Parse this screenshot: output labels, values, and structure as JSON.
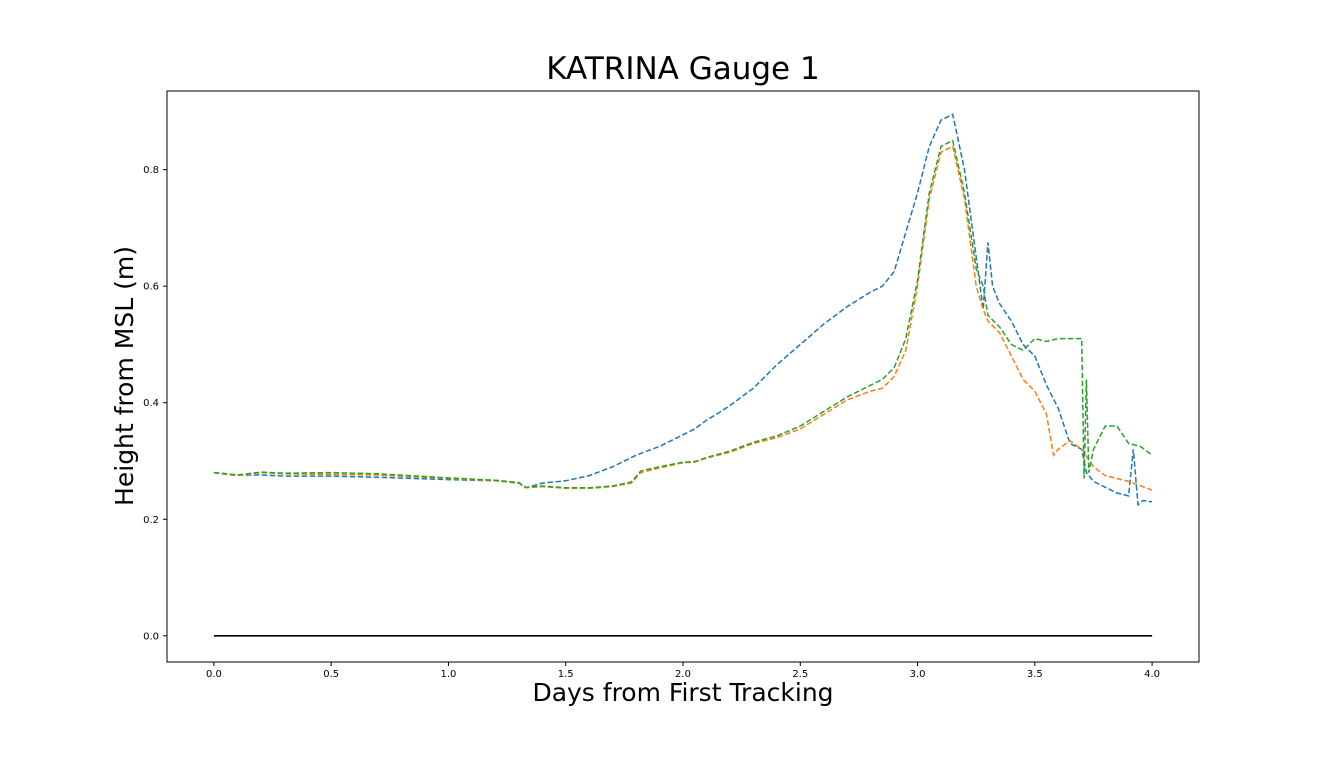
{
  "chart_data": {
    "type": "line",
    "title": "KATRINA Gauge 1",
    "xlabel": "Days from First Tracking",
    "ylabel": "Height from MSL (m)",
    "xlim": [
      -0.2,
      4.2
    ],
    "ylim": [
      -0.045,
      0.935
    ],
    "xticks": [
      0.0,
      0.5,
      1.0,
      1.5,
      2.0,
      2.5,
      3.0,
      3.5,
      4.0
    ],
    "xtick_labels": [
      "0.0",
      "0.5",
      "1.0",
      "1.5",
      "2.0",
      "2.5",
      "3.0",
      "3.5",
      "4.0"
    ],
    "yticks": [
      0.0,
      0.2,
      0.4,
      0.6,
      0.8
    ],
    "ytick_labels": [
      "0.0",
      "0.2",
      "0.4",
      "0.6",
      "0.8"
    ],
    "grid": false,
    "legend": "none",
    "series": [
      {
        "color": "#1f77b4",
        "style": "dashed",
        "x": [
          0.0,
          0.05,
          0.1,
          0.2,
          0.3,
          0.5,
          0.7,
          1.0,
          1.2,
          1.3,
          1.33,
          1.4,
          1.5,
          1.6,
          1.7,
          1.8,
          1.9,
          2.0,
          2.05,
          2.1,
          2.15,
          2.2,
          2.25,
          2.3,
          2.35,
          2.4,
          2.5,
          2.6,
          2.7,
          2.8,
          2.85,
          2.9,
          3.0,
          3.05,
          3.1,
          3.15,
          3.2,
          3.25,
          3.28,
          3.3,
          3.32,
          3.35,
          3.4,
          3.45,
          3.5,
          3.55,
          3.6,
          3.65,
          3.7,
          3.72,
          3.75,
          3.8,
          3.85,
          3.9,
          3.92,
          3.94,
          3.96,
          4.0
        ],
        "values": [
          0.28,
          0.278,
          0.276,
          0.276,
          0.274,
          0.274,
          0.272,
          0.268,
          0.266,
          0.262,
          0.254,
          0.262,
          0.266,
          0.275,
          0.29,
          0.31,
          0.325,
          0.345,
          0.355,
          0.37,
          0.382,
          0.395,
          0.41,
          0.425,
          0.445,
          0.465,
          0.5,
          0.535,
          0.565,
          0.59,
          0.6,
          0.625,
          0.76,
          0.84,
          0.885,
          0.895,
          0.8,
          0.65,
          0.56,
          0.675,
          0.6,
          0.57,
          0.54,
          0.5,
          0.48,
          0.43,
          0.39,
          0.33,
          0.32,
          0.28,
          0.265,
          0.255,
          0.245,
          0.24,
          0.32,
          0.225,
          0.232,
          0.23
        ]
      },
      {
        "color": "#ff7f0e",
        "style": "dashed",
        "x": [
          0.0,
          0.05,
          0.1,
          0.2,
          0.3,
          0.5,
          0.7,
          1.0,
          1.2,
          1.3,
          1.33,
          1.4,
          1.5,
          1.6,
          1.7,
          1.78,
          1.82,
          1.9,
          2.0,
          2.05,
          2.1,
          2.2,
          2.3,
          2.4,
          2.5,
          2.6,
          2.7,
          2.8,
          2.85,
          2.9,
          2.95,
          3.0,
          3.05,
          3.1,
          3.15,
          3.2,
          3.25,
          3.28,
          3.3,
          3.35,
          3.4,
          3.45,
          3.5,
          3.55,
          3.58,
          3.6,
          3.65,
          3.7,
          3.75,
          3.8,
          3.9,
          4.0
        ],
        "values": [
          0.28,
          0.277,
          0.275,
          0.28,
          0.278,
          0.277,
          0.276,
          0.27,
          0.266,
          0.262,
          0.254,
          0.256,
          0.253,
          0.253,
          0.256,
          0.262,
          0.28,
          0.288,
          0.297,
          0.298,
          0.305,
          0.315,
          0.33,
          0.34,
          0.355,
          0.38,
          0.405,
          0.42,
          0.425,
          0.445,
          0.49,
          0.6,
          0.75,
          0.83,
          0.84,
          0.75,
          0.6,
          0.56,
          0.54,
          0.52,
          0.48,
          0.44,
          0.42,
          0.38,
          0.31,
          0.32,
          0.335,
          0.32,
          0.29,
          0.275,
          0.265,
          0.25
        ]
      },
      {
        "color": "#2ca02c",
        "style": "dashed",
        "x": [
          0.0,
          0.05,
          0.1,
          0.2,
          0.3,
          0.5,
          0.7,
          1.0,
          1.2,
          1.3,
          1.33,
          1.4,
          1.5,
          1.6,
          1.7,
          1.78,
          1.82,
          1.9,
          2.0,
          2.05,
          2.1,
          2.2,
          2.3,
          2.4,
          2.5,
          2.6,
          2.7,
          2.8,
          2.85,
          2.9,
          2.95,
          3.0,
          3.05,
          3.1,
          3.15,
          3.2,
          3.25,
          3.28,
          3.3,
          3.35,
          3.4,
          3.45,
          3.5,
          3.55,
          3.6,
          3.65,
          3.7,
          3.71,
          3.72,
          3.73,
          3.75,
          3.8,
          3.85,
          3.9,
          3.95,
          4.0
        ],
        "values": [
          0.28,
          0.278,
          0.276,
          0.281,
          0.279,
          0.28,
          0.278,
          0.271,
          0.267,
          0.263,
          0.255,
          0.257,
          0.254,
          0.254,
          0.257,
          0.264,
          0.283,
          0.29,
          0.298,
          0.299,
          0.306,
          0.317,
          0.332,
          0.343,
          0.36,
          0.385,
          0.41,
          0.43,
          0.44,
          0.46,
          0.51,
          0.61,
          0.76,
          0.84,
          0.85,
          0.76,
          0.63,
          0.6,
          0.55,
          0.53,
          0.5,
          0.49,
          0.51,
          0.505,
          0.51,
          0.51,
          0.51,
          0.27,
          0.44,
          0.28,
          0.32,
          0.36,
          0.36,
          0.33,
          0.325,
          0.31
        ]
      },
      {
        "color": "#000000",
        "style": "solid",
        "x": [
          0.0,
          4.0
        ],
        "values": [
          0.0,
          0.0
        ]
      }
    ]
  }
}
